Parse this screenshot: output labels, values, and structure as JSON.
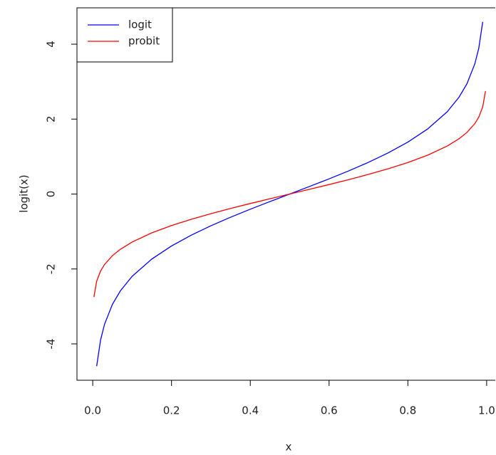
{
  "chart_data": {
    "type": "line",
    "x_label": "x",
    "y_label": "logit(x)",
    "xlim": [
      -0.04,
      1.04
    ],
    "ylim": [
      -4.97,
      4.97
    ],
    "xticks": [
      {
        "value": 0,
        "label": "0.0"
      },
      0.2,
      0.4,
      0.6,
      0.8,
      {
        "value": 1,
        "label": "1.0"
      }
    ],
    "yticks": [
      -4,
      -2,
      0,
      2,
      4
    ],
    "legend": "top-left",
    "series": [
      {
        "name": "logit",
        "color": "#0000ff",
        "x": [
          0.01,
          0.02,
          0.03,
          0.05,
          0.07,
          0.1,
          0.15,
          0.2,
          0.25,
          0.3,
          0.35,
          0.4,
          0.45,
          0.5,
          0.55,
          0.6,
          0.65,
          0.7,
          0.75,
          0.8,
          0.85,
          0.9,
          0.93,
          0.95,
          0.97,
          0.98,
          0.99
        ],
        "values": [
          -4.595,
          -3.892,
          -3.476,
          -2.944,
          -2.587,
          -2.197,
          -1.735,
          -1.386,
          -1.099,
          -0.847,
          -0.619,
          -0.405,
          -0.201,
          0,
          0.201,
          0.405,
          0.619,
          0.847,
          1.099,
          1.386,
          1.735,
          2.197,
          2.587,
          2.944,
          3.476,
          3.892,
          4.595
        ]
      },
      {
        "name": "probit",
        "color": "#ff0000",
        "x": [
          0.003,
          0.01,
          0.02,
          0.03,
          0.05,
          0.07,
          0.1,
          0.15,
          0.2,
          0.25,
          0.3,
          0.35,
          0.4,
          0.45,
          0.5,
          0.55,
          0.6,
          0.65,
          0.7,
          0.75,
          0.8,
          0.85,
          0.9,
          0.93,
          0.95,
          0.97,
          0.98,
          0.99,
          0.997
        ],
        "values": [
          -2.748,
          -2.326,
          -2.054,
          -1.881,
          -1.645,
          -1.476,
          -1.282,
          -1.036,
          -0.842,
          -0.674,
          -0.524,
          -0.385,
          -0.253,
          -0.126,
          0,
          0.126,
          0.253,
          0.385,
          0.524,
          0.674,
          0.842,
          1.036,
          1.282,
          1.476,
          1.645,
          1.881,
          2.054,
          2.326,
          2.748
        ]
      }
    ]
  }
}
